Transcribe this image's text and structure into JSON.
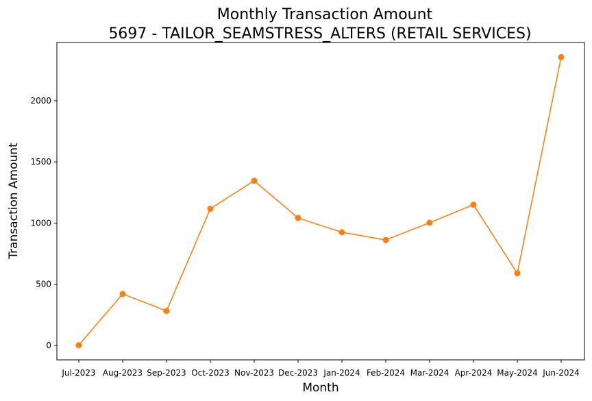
{
  "chart_data": {
    "type": "line",
    "title": "Monthly Transaction Amount",
    "subtitle": "5697 - TAILOR_SEAMSTRESS_ALTERS (RETAIL SERVICES)",
    "xlabel": "Month",
    "ylabel": "Transaction Amount",
    "categories": [
      "Jul-2023",
      "Aug-2023",
      "Sep-2023",
      "Oct-2023",
      "Nov-2023",
      "Dec-2023",
      "Jan-2024",
      "Feb-2024",
      "Mar-2024",
      "Apr-2024",
      "May-2024",
      "Jun-2024"
    ],
    "series": [
      {
        "values": [
          2,
          421,
          282,
          1117,
          1346,
          1042,
          925,
          862,
          1003,
          1150,
          590,
          2356
        ]
      }
    ],
    "yticks": [
      0,
      500,
      1000,
      1500,
      2000
    ],
    "ylim": [
      -118,
      2476
    ],
    "grid": false,
    "line_color": "#ff7f0e"
  }
}
